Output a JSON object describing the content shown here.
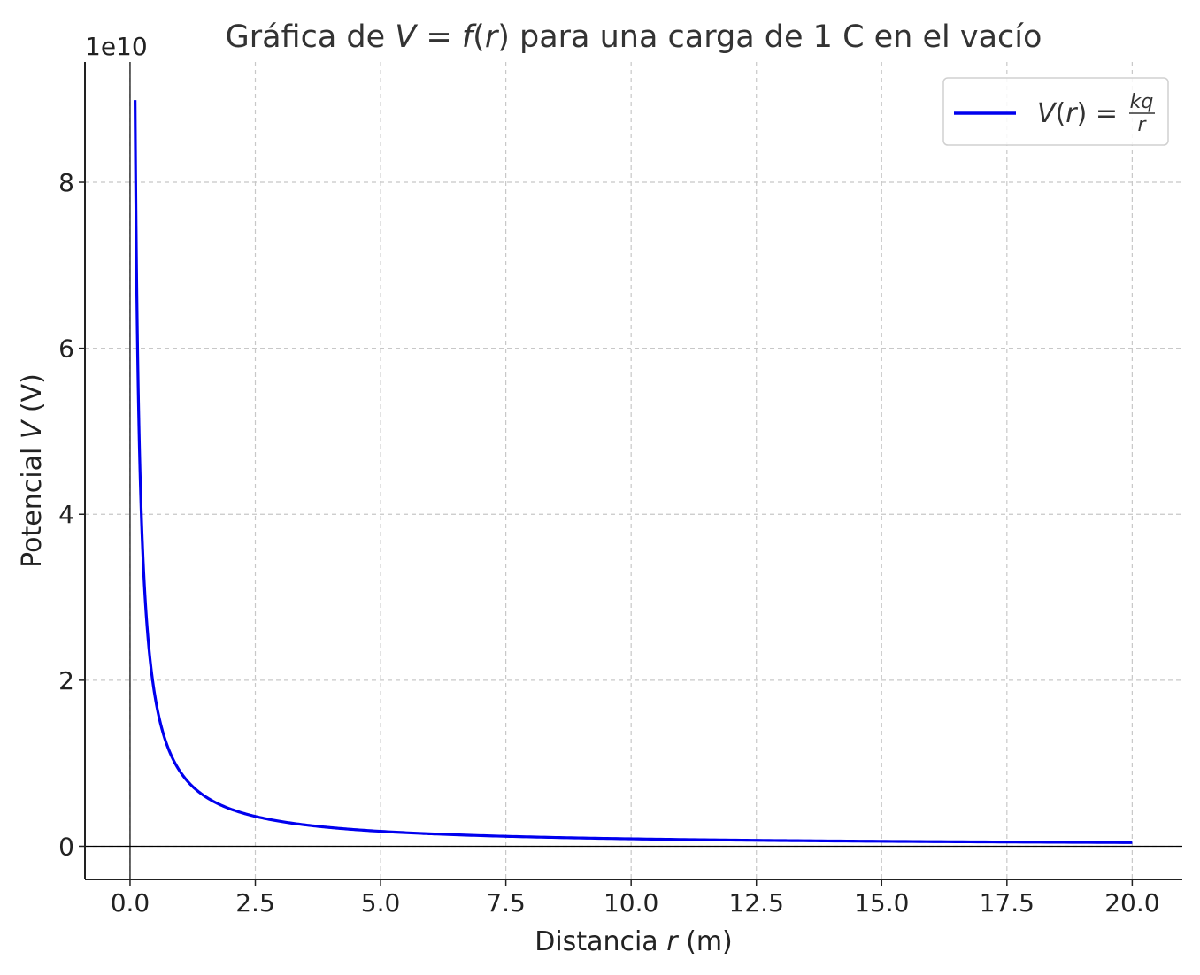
{
  "chart_data": {
    "type": "line",
    "title": {
      "prefix": "Gráfica de ",
      "math_V": "V",
      "eq": " = ",
      "math_f": "f",
      "paren_open": "(",
      "math_r": "r",
      "paren_close": ")",
      "suffix": " para una carga de 1 C en el vacío"
    },
    "xlabel": {
      "prefix": "Distancia ",
      "math": "r",
      "suffix": " (m)"
    },
    "ylabel": {
      "prefix": "Potencial ",
      "math": "V",
      "suffix": " (V)"
    },
    "y_offset_label": "1e10",
    "xlim": [
      -0.9,
      21.0
    ],
    "ylim": [
      -4000000000.0,
      94500000000.0
    ],
    "x_ticks": [
      0,
      2.5,
      5,
      7.5,
      10,
      12.5,
      15,
      17.5,
      20
    ],
    "x_tick_labels": [
      "0.0",
      "2.5",
      "5.0",
      "7.5",
      "10.0",
      "12.5",
      "15.0",
      "17.5",
      "20.0"
    ],
    "y_ticks": [
      0,
      20000000000.0,
      40000000000.0,
      60000000000.0,
      80000000000.0
    ],
    "y_tick_labels": [
      "0",
      "2",
      "4",
      "6",
      "8"
    ],
    "grid": true,
    "legend_position": "top-right",
    "series": [
      {
        "name": "V(r) = kq/r",
        "name_parts": {
          "math_V": "V",
          "paren_open": "(",
          "math_r": "r",
          "paren_close": ")",
          "eq": " = ",
          "num": "kq",
          "den": "r"
        },
        "color": "#0000ee",
        "function": "k*q/r",
        "k": 8990000000.0,
        "q": 1,
        "x_range": [
          0.1,
          20
        ],
        "x": [
          0.1,
          0.15,
          0.2,
          0.3,
          0.5,
          0.75,
          1,
          1.5,
          2,
          3,
          5,
          7.5,
          10,
          15,
          20
        ],
        "y": [
          89900000000.0,
          59900000000.0,
          45000000000.0,
          30000000000.0,
          18000000000.0,
          12000000000.0,
          8990000000.0,
          5990000000.0,
          4500000000.0,
          3000000000.0,
          1800000000.0,
          1200000000.0,
          899000000.0,
          600000000.0,
          450000000.0
        ]
      }
    ]
  }
}
